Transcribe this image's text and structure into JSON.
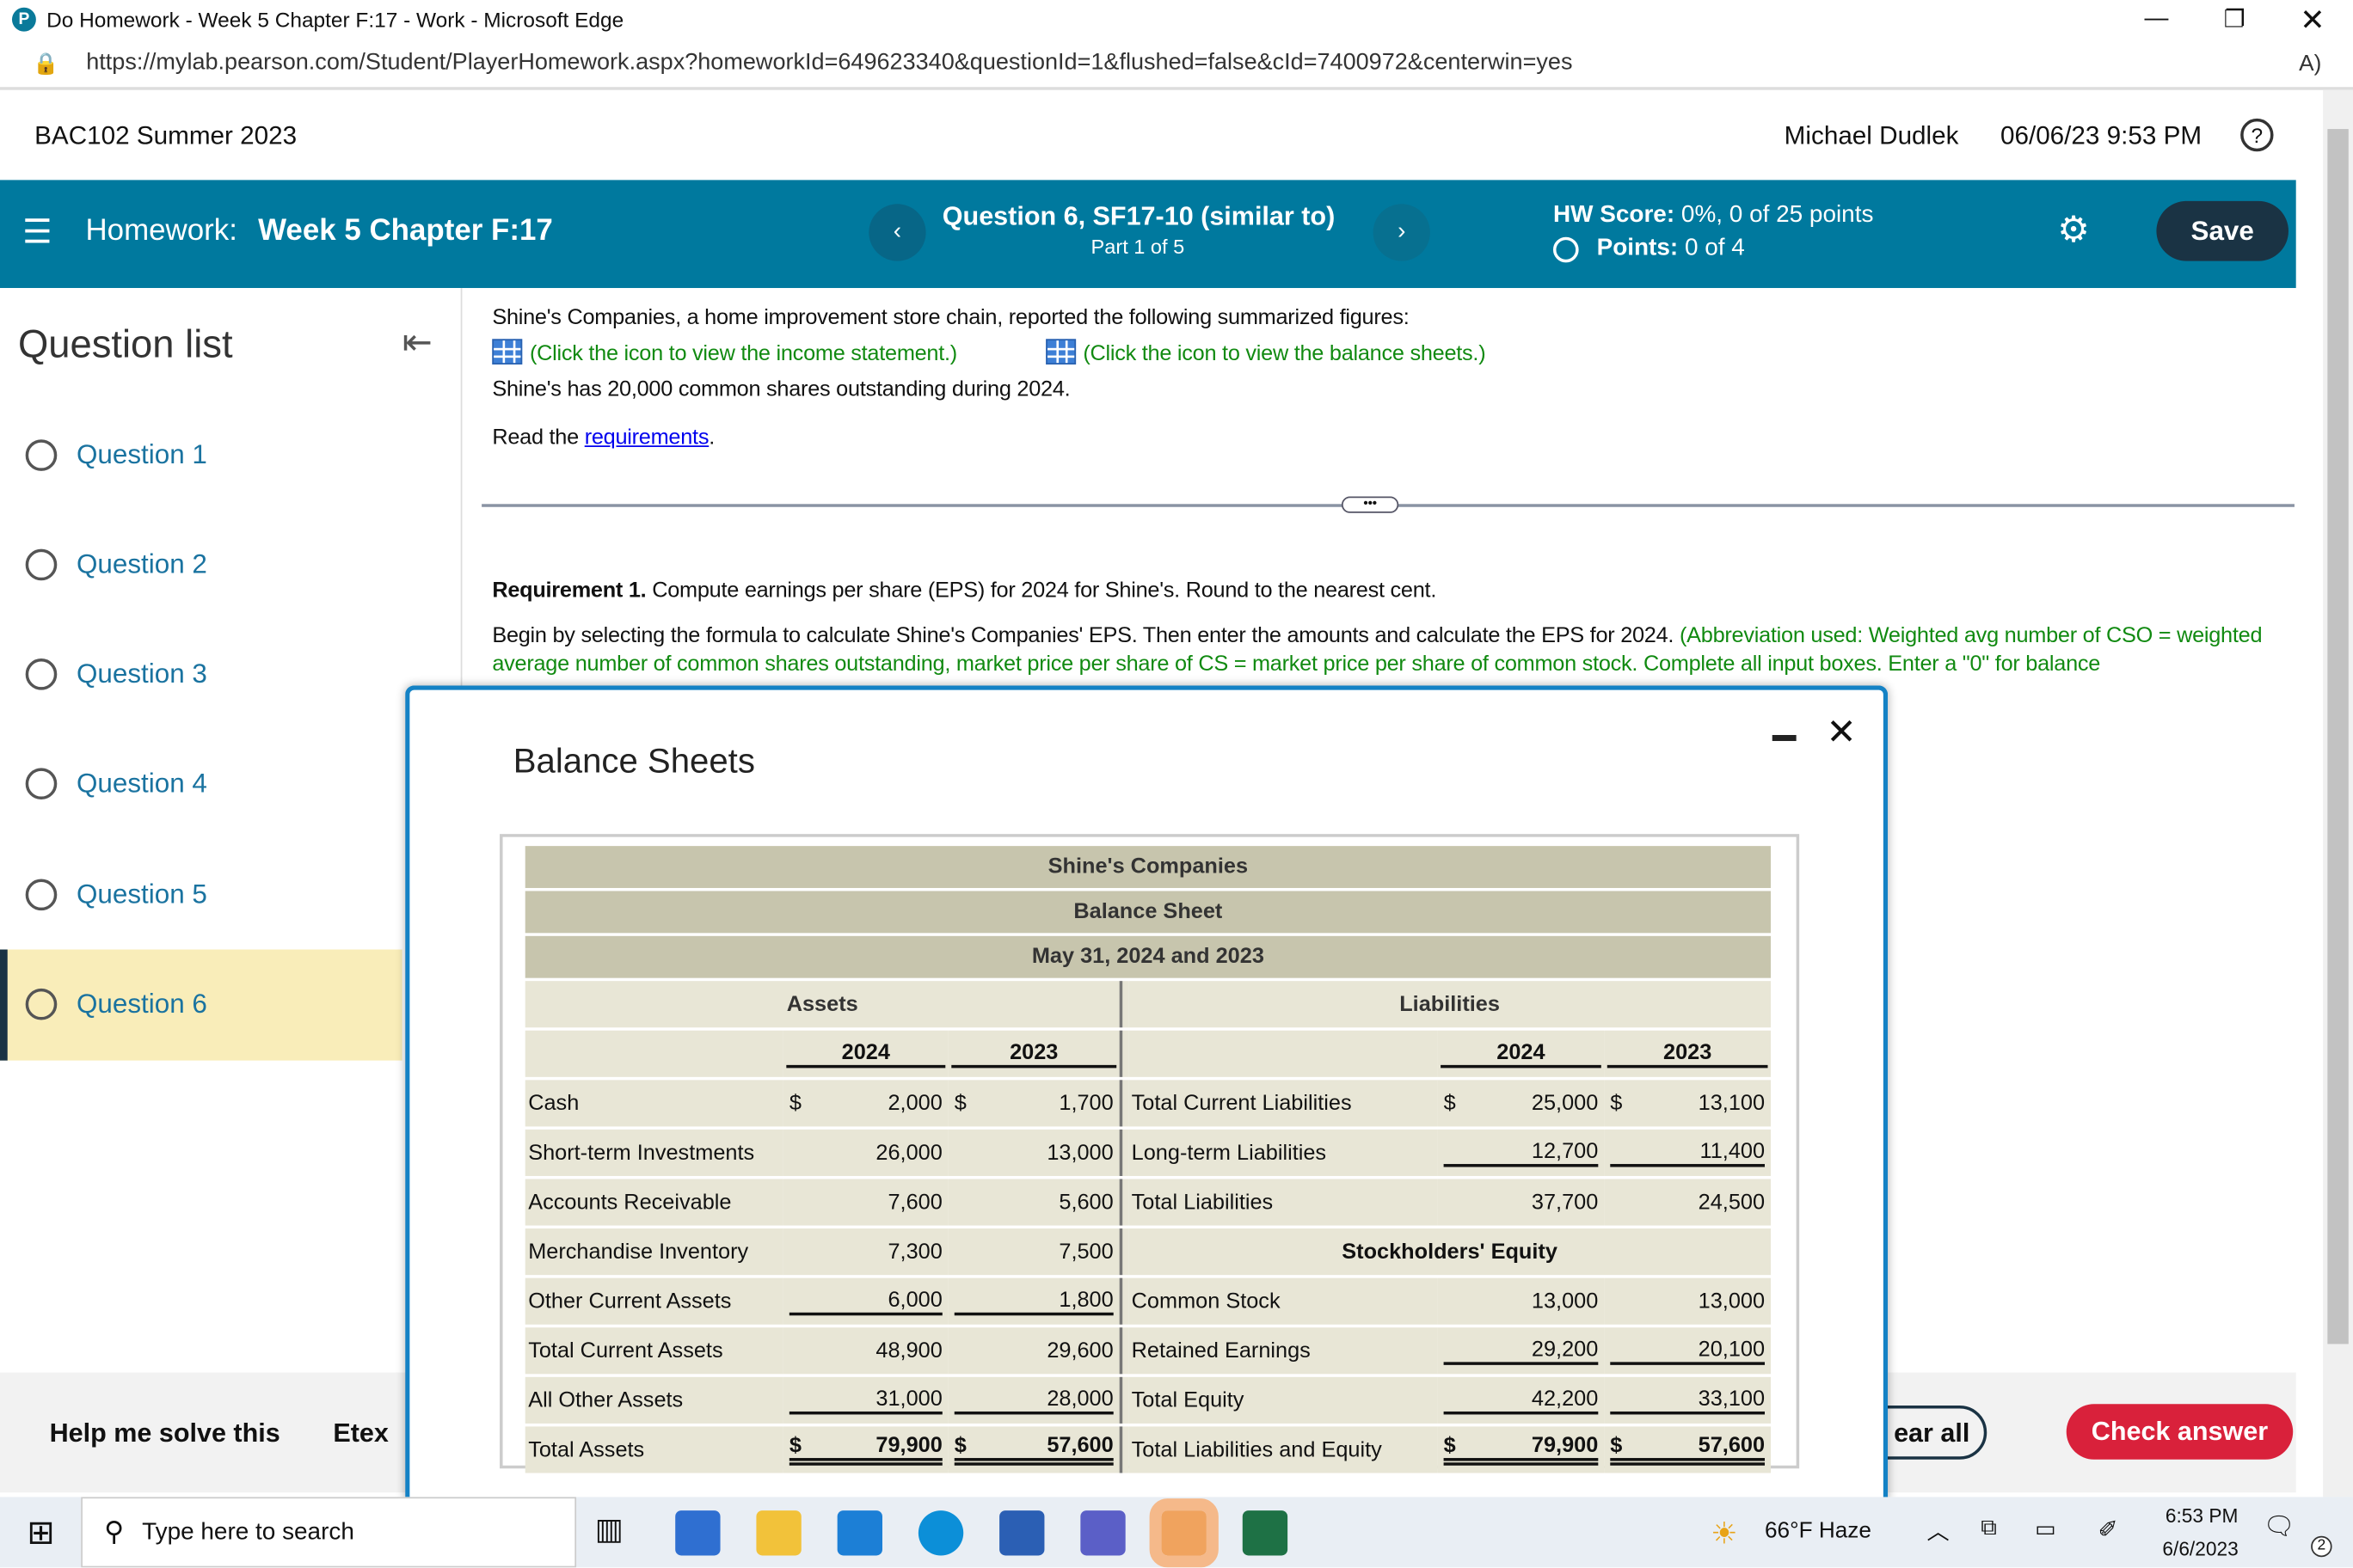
{
  "browser": {
    "title": "Do Homework - Week 5 Chapter F:17 - Work - Microsoft Edge",
    "url": "https://mylab.pearson.com/Student/PlayerHomework.aspx?homeworkId=649623340&questionId=1&flushed=false&cId=7400972&centerwin=yes",
    "read_aloud": "A)"
  },
  "header": {
    "course": "BAC102 Summer 2023",
    "user": "Michael Dudlek",
    "datetime": "06/06/23 9:53 PM",
    "help": "?"
  },
  "hwbar": {
    "prefix": "Homework:",
    "name": "Week 5 Chapter F:17",
    "question": "Question 6, SF17-10 (similar to)",
    "part": "Part 1 of 5",
    "score_label": "HW Score:",
    "score": "0%, 0 of 25 points",
    "points_label": "Points:",
    "points": "0 of 4",
    "save": "Save",
    "accent": "#00799e"
  },
  "sidebar": {
    "title": "Question list",
    "items": [
      "Question 1",
      "Question 2",
      "Question 3",
      "Question 4",
      "Question 5",
      "Question 6"
    ],
    "active": 5
  },
  "main": {
    "intro": "Shine's Companies, a home improvement store chain, reported the following summarized figures:",
    "income_link": "(Click the icon to view the income statement.)",
    "balance_link": "(Click the icon to view the balance sheets.)",
    "shares": "Shine's has 20,000 common shares outstanding during 2024.",
    "read": "Read the ",
    "req_link": "requirements",
    "read_end": ".",
    "req_bold": "Requirement 1.",
    "req_text": " Compute earnings per share (EPS) for 2024 for Shine's. Round to the nearest cent.",
    "begin": "Begin by selecting the formula to calculate Shine's Companies' EPS. Then enter the amounts and calculate the EPS for 2024. ",
    "begin_green": "(Abbreviation used: Weighted avg number of CSO = weighted average number of common shares outstanding, market price per share of CS = market price per share of common stock. Complete all input boxes. Enter a \"0\" for balance"
  },
  "bottom": {
    "help": "Help me solve this",
    "etext": "Etex",
    "clear": "ear all",
    "check": "Check answer",
    "check_color": "#d9213b"
  },
  "modal": {
    "title": "Balance Sheets",
    "table": {
      "company": "Shine's Companies",
      "statement": "Balance Sheet",
      "date": "May 31, 2024 and 2023",
      "assets": "Assets",
      "liabilities": "Liabilities",
      "years": [
        "2024",
        "2023"
      ],
      "equity_header": "Stockholders' Equity",
      "rows": [
        {
          "l": "Cash",
          "l1": "2,000",
          "l2": "1,700",
          "lcur": true,
          "r": "Total Current Liabilities",
          "r1": "25,000",
          "r2": "13,100",
          "rcur": true
        },
        {
          "l": "Short-term Investments",
          "l1": "26,000",
          "l2": "13,000",
          "r": "Long-term Liabilities",
          "r1": "12,700",
          "r2": "11,400",
          "rul": true
        },
        {
          "l": "Accounts Receivable",
          "l1": "7,600",
          "l2": "5,600",
          "r": "Total Liabilities",
          "r1": "37,700",
          "r2": "24,500"
        },
        {
          "l": "Merchandise Inventory",
          "l1": "7,300",
          "l2": "7,500",
          "rhead": "Stockholders' Equity"
        },
        {
          "l": "Other Current Assets",
          "l1": "6,000",
          "l2": "1,800",
          "lul": true,
          "r": "Common Stock",
          "r1": "13,000",
          "r2": "13,000"
        },
        {
          "l": "Total Current Assets",
          "l1": "48,900",
          "l2": "29,600",
          "r": "Retained Earnings",
          "r1": "29,200",
          "r2": "20,100",
          "rul": true
        },
        {
          "l": "All Other Assets",
          "l1": "31,000",
          "l2": "28,000",
          "lul": true,
          "r": "Total Equity",
          "r1": "42,200",
          "r2": "33,100",
          "rul": true
        },
        {
          "l": "Total Assets",
          "l1": "79,900",
          "l2": "57,600",
          "lcur": true,
          "ldbl": true,
          "r": "Total Liabilities and Equity",
          "r1": "79,900",
          "r2": "57,600",
          "rcur": true,
          "rdbl": true
        }
      ]
    }
  },
  "taskbar": {
    "search": "Type here to search",
    "weather": "66°F  Haze",
    "time": "6:53 PM",
    "date": "6/6/2023",
    "notif": "2"
  }
}
